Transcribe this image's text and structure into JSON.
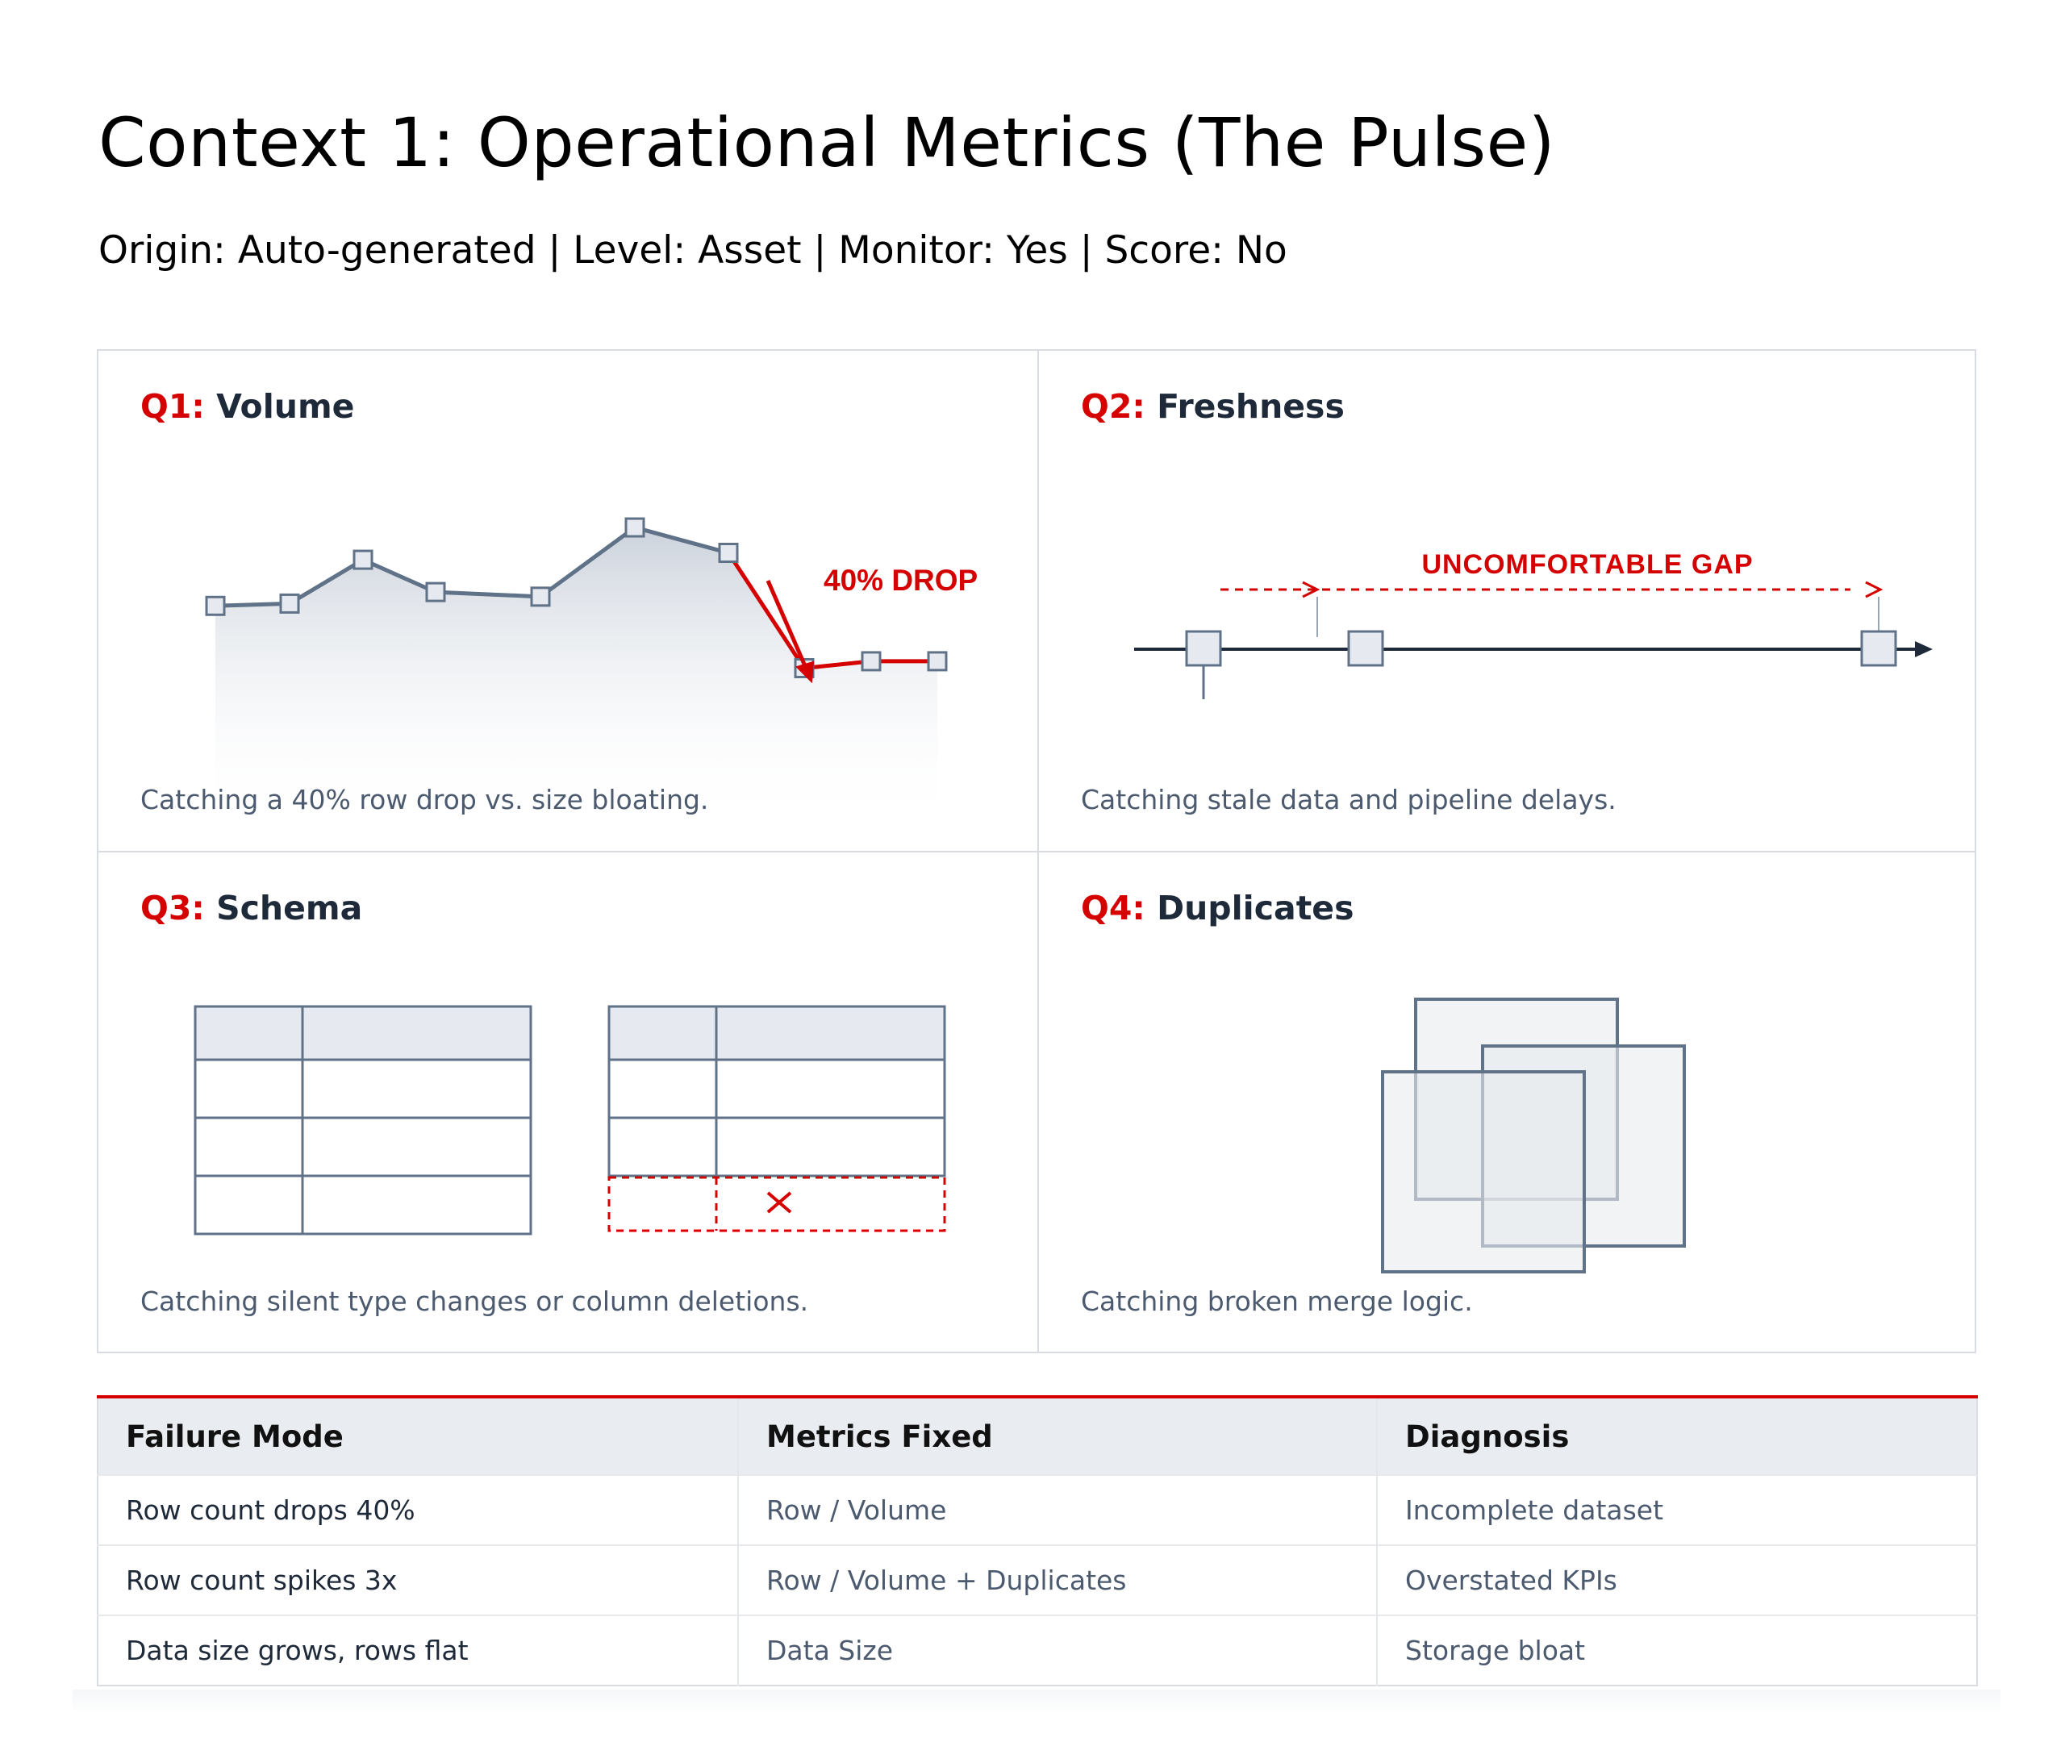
{
  "header": {
    "title": "Context 1: Operational Metrics (The Pulse)",
    "subtitle": "Origin: Auto-generated | Level: Asset | Monitor: Yes | Score: No"
  },
  "panels": [
    {
      "id": "Q1:",
      "name": "Volume",
      "desc": "Catching a 40% row drop vs. size bloating.",
      "annotation": "40% DROP"
    },
    {
      "id": "Q2:",
      "name": "Freshness",
      "desc": "Catching stale data and pipeline delays.",
      "annotation": "UNCOMFORTABLE GAP"
    },
    {
      "id": "Q3:",
      "name": "Schema",
      "desc": "Catching silent type changes or column deletions."
    },
    {
      "id": "Q4:",
      "name": "Duplicates",
      "desc": "Catching broken merge logic."
    }
  ],
  "volume_series": {
    "normal": [
      0.52,
      0.53,
      0.72,
      0.58,
      0.56,
      0.86,
      0.75
    ],
    "drop": [
      0.25,
      0.28,
      0.28
    ]
  },
  "table": {
    "headers": [
      "Failure Mode",
      "Metrics Fixed",
      "Diagnosis"
    ],
    "rows": [
      [
        "Row count drops 40%",
        "Row / Volume",
        "Incomplete dataset"
      ],
      [
        "Row count spikes 3x",
        "Row / Volume + Duplicates",
        "Overstated KPIs"
      ],
      [
        "Data size grows, rows flat",
        "Data Size",
        "Storage bloat"
      ]
    ]
  },
  "colors": {
    "accent": "#d50000",
    "ink": "#1e2a3a",
    "muted": "#4b5a6e",
    "shape_stroke": "#5f7288",
    "shape_fill": "#e6eaf0"
  }
}
